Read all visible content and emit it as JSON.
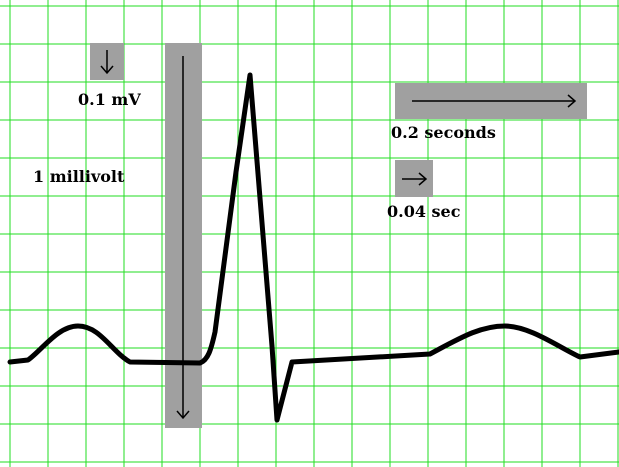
{
  "diagram": {
    "labels": {
      "small_voltage": "0.1 mV",
      "large_voltage": "1 millivolt",
      "large_time": "0.2 seconds",
      "small_time": "0.04 sec"
    },
    "colors": {
      "grid": "#22dd22",
      "background": "#ffffff",
      "scale_box": "#a0a0a0",
      "trace": "#000000"
    },
    "icons": [
      "arrow-down-icon",
      "arrow-right-icon"
    ]
  }
}
